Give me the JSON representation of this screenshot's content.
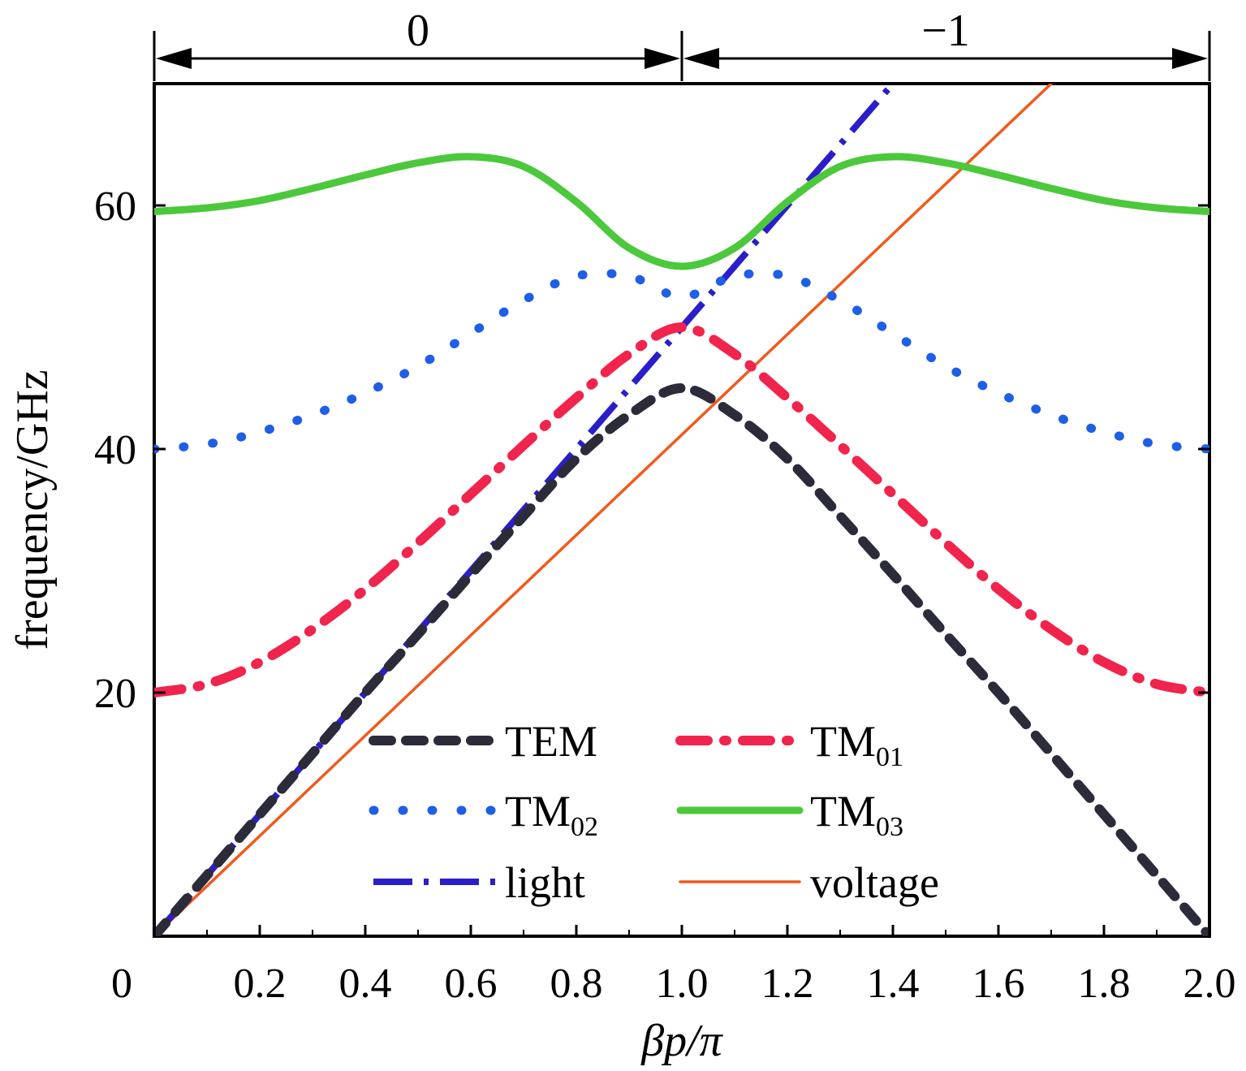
{
  "chart_data": {
    "type": "line",
    "xlabel": "βp/π",
    "ylabel": "frequency/GHz",
    "xlim": [
      0,
      2.0
    ],
    "ylim": [
      0,
      70
    ],
    "x_ticks": [
      0,
      0.2,
      0.4,
      0.6,
      0.8,
      1.0,
      1.2,
      1.4,
      1.6,
      1.8,
      2.0
    ],
    "x_tick_labels": [
      "0",
      "0.2",
      "0.4",
      "0.6",
      "0.8",
      "1.0",
      "1.2",
      "1.4",
      "1.6",
      "1.8",
      "2.0"
    ],
    "y_ticks": [
      20,
      40,
      60
    ],
    "y_tick_labels": [
      "20",
      "40",
      "60"
    ],
    "grid": false,
    "legend_position": "bottom-center",
    "regions": [
      {
        "label": "0",
        "from": 0,
        "to": 1.0
      },
      {
        "label": "−1",
        "from": 1.0,
        "to": 2.0
      }
    ],
    "series": [
      {
        "name": "TEM",
        "color": "#2b2b3a",
        "dash": "dash",
        "x": [
          0,
          0.1,
          0.2,
          0.3,
          0.4,
          0.5,
          0.6,
          0.7,
          0.8,
          0.9,
          1.0,
          1.1,
          1.2,
          1.3,
          1.4,
          1.5,
          1.6,
          1.7,
          1.8,
          1.9,
          2.0
        ],
        "y": [
          0,
          5,
          10,
          15,
          20,
          24.8,
          29.7,
          34.5,
          39.2,
          42.8,
          45,
          42.8,
          39.2,
          34.5,
          29.7,
          24.8,
          20,
          15,
          10,
          5,
          0
        ]
      },
      {
        "name": "TM",
        "sub": "01",
        "color": "#f0244c",
        "dash": "dashdot",
        "x": [
          0,
          0.1,
          0.2,
          0.3,
          0.4,
          0.5,
          0.6,
          0.7,
          0.8,
          0.9,
          1.0,
          1.1,
          1.2,
          1.3,
          1.4,
          1.5,
          1.6,
          1.7,
          1.8,
          1.9,
          2.0
        ],
        "y": [
          20,
          20.7,
          22.5,
          25.2,
          28.5,
          32.3,
          36.3,
          40.3,
          44.2,
          47.8,
          50,
          47.8,
          44.2,
          40.3,
          36.3,
          32.3,
          28.5,
          25.2,
          22.5,
          20.7,
          20
        ]
      },
      {
        "name": "TM",
        "sub": "02",
        "color": "#1f5ee6",
        "dash": "dot",
        "x": [
          0,
          0.1,
          0.2,
          0.3,
          0.4,
          0.5,
          0.6,
          0.7,
          0.8,
          0.9,
          1.0,
          1.1,
          1.2,
          1.3,
          1.4,
          1.5,
          1.6,
          1.7,
          1.8,
          1.9,
          2.0
        ],
        "y": [
          40,
          40.4,
          41.4,
          42.8,
          44.6,
          46.8,
          49.5,
          52.2,
          54.2,
          54.2,
          52.5,
          54.2,
          54.2,
          52.2,
          49.5,
          46.8,
          44.6,
          42.8,
          41.4,
          40.4,
          40
        ]
      },
      {
        "name": "TM",
        "sub": "03",
        "color": "#4cc83c",
        "dash": "solid",
        "x": [
          0,
          0.1,
          0.2,
          0.3,
          0.4,
          0.5,
          0.6,
          0.7,
          0.8,
          0.9,
          1.0,
          1.1,
          1.2,
          1.3,
          1.4,
          1.5,
          1.6,
          1.7,
          1.8,
          1.9,
          2.0
        ],
        "y": [
          59.5,
          59.8,
          60.4,
          61.4,
          62.5,
          63.5,
          64,
          63.2,
          60.3,
          56.5,
          55,
          56.5,
          60.3,
          63.2,
          64,
          63.5,
          62.5,
          61.4,
          60.4,
          59.8,
          59.5
        ]
      },
      {
        "name": "light",
        "color": "#2a1ecb",
        "dash": "dashdotlong",
        "x": [
          0,
          1.4
        ],
        "y": [
          0,
          70
        ]
      },
      {
        "name": "voltage",
        "color": "#f05a1e",
        "dash": "solid",
        "x": [
          0,
          1.7
        ],
        "y": [
          0,
          70
        ]
      }
    ]
  }
}
